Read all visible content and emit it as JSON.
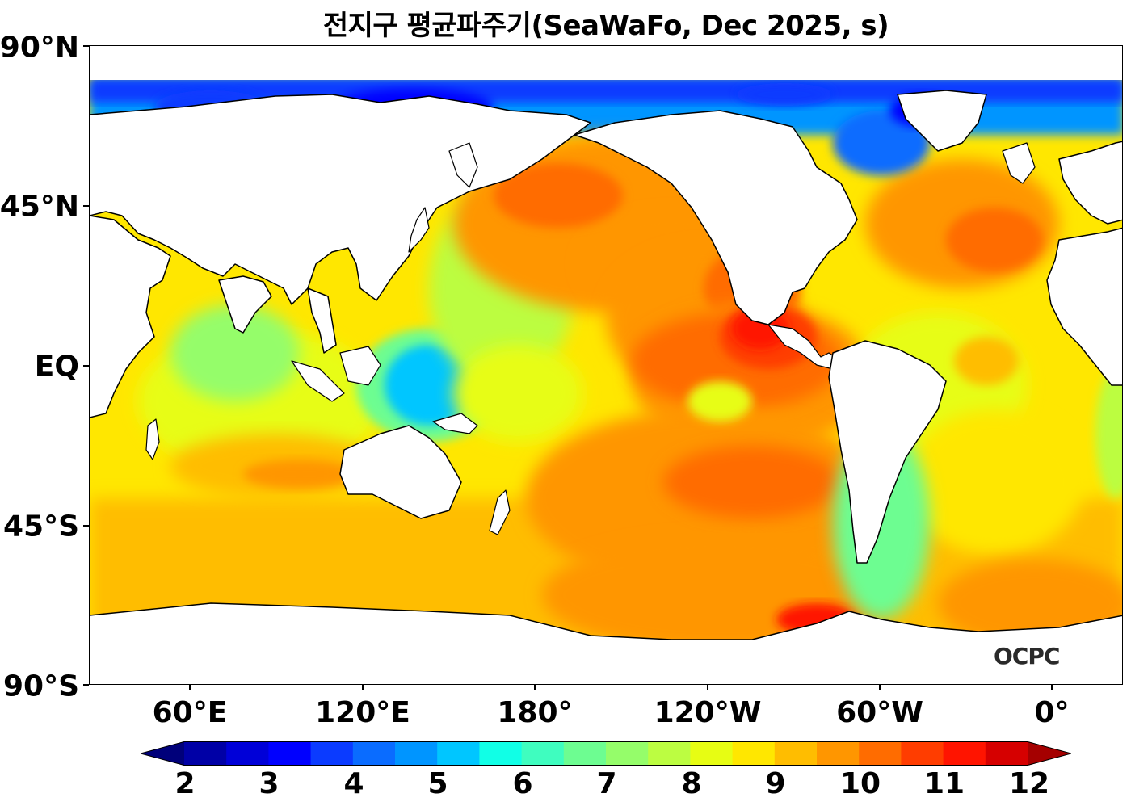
{
  "title": "전지구 평균파주기(SeaWaFo, Dec 2025, s)",
  "logo": "OCPC",
  "lat_labels": [
    "90°N",
    "45°N",
    "EQ",
    "45°S",
    "90°S"
  ],
  "lat_values": [
    90,
    45,
    0,
    -45,
    -90
  ],
  "lon_labels": [
    "60°E",
    "120°E",
    "180°",
    "120°W",
    "60°W",
    "0°"
  ],
  "lon_values": [
    60,
    120,
    180,
    240,
    300,
    360
  ],
  "map_extent": {
    "lon_min": 25,
    "lon_max": 385,
    "lat_min": -90,
    "lat_max": 90
  },
  "colorbar": {
    "min": 2,
    "max": 12,
    "step": 0.5,
    "extend": "both",
    "tick_labels": [
      "2",
      "3",
      "4",
      "5",
      "6",
      "7",
      "8",
      "9",
      "10",
      "11",
      "12"
    ],
    "colors": [
      "#00007a",
      "#0000a6",
      "#0000d8",
      "#0000ff",
      "#0b3bff",
      "#0a6cff",
      "#0095ff",
      "#00c6ff",
      "#11ffe6",
      "#3ffdbf",
      "#6dfd91",
      "#95fd6a",
      "#bcfd41",
      "#e7fd13",
      "#ffe700",
      "#ffbd00",
      "#ff9600",
      "#ff6c00",
      "#ff3d00",
      "#ff1400",
      "#d60000",
      "#a50000"
    ],
    "under_color": "#00004f",
    "over_color": "#800000"
  },
  "colors": {
    "land": "#ffffff",
    "coast": "#000000"
  }
}
